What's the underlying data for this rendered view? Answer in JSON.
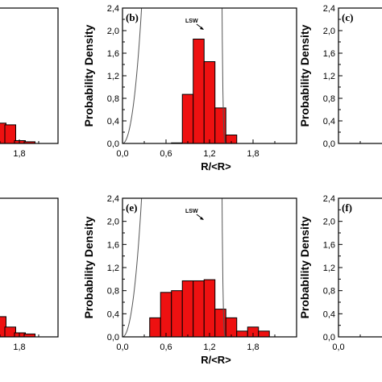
{
  "chart_data": [
    {
      "type": "bar",
      "panel_label": "",
      "xlabel": "",
      "ylabel": "",
      "xlim": [
        0,
        2.4
      ],
      "ylim": [
        0,
        2.4
      ],
      "xticks": [
        "1,8"
      ],
      "yticks": [],
      "bar_width": 0.15,
      "bars": [
        {
          "x": 1.5,
          "y": 0.36
        },
        {
          "x": 1.65,
          "y": 0.33
        },
        {
          "x": 1.8,
          "y": 0.05
        },
        {
          "x": 1.95,
          "y": 0.03
        }
      ],
      "curve": false,
      "curve_label": ""
    },
    {
      "type": "bar",
      "panel_label": "(b)",
      "xlabel": "R/<R>",
      "ylabel": "Probability Density",
      "xlim": [
        0,
        2.4
      ],
      "ylim": [
        0,
        2.4
      ],
      "xticks": [
        "0,0",
        "0,6",
        "1,2",
        "1,8"
      ],
      "yticks": [
        "0,0",
        "0,4",
        "0,8",
        "1,2",
        "1,6",
        "2,0",
        "2,4"
      ],
      "bar_width": 0.15,
      "bars": [
        {
          "x": 0.75,
          "y": 0.01
        },
        {
          "x": 0.9,
          "y": 0.87
        },
        {
          "x": 1.05,
          "y": 1.85
        },
        {
          "x": 1.2,
          "y": 1.45
        },
        {
          "x": 1.35,
          "y": 0.63
        },
        {
          "x": 1.5,
          "y": 0.15
        }
      ],
      "curve": true,
      "curve_label": "LSW"
    },
    {
      "type": "bar",
      "panel_label": "(c)",
      "xlabel": "",
      "ylabel": "Probability Density",
      "xlim": [
        0,
        2.4
      ],
      "ylim": [
        0,
        2.4
      ],
      "xticks": [],
      "yticks": [
        "0,0",
        "0,4",
        "0,8",
        "1,2",
        "1,6",
        "2,0",
        "2,4"
      ],
      "bar_width": 0.15,
      "bars": [],
      "curve": false,
      "curve_label": ""
    },
    {
      "type": "bar",
      "panel_label": "",
      "xlabel": "",
      "ylabel": "",
      "xlim": [
        0,
        2.4
      ],
      "ylim": [
        0,
        2.4
      ],
      "xticks": [
        "1,8"
      ],
      "yticks": [],
      "bar_width": 0.15,
      "bars": [
        {
          "x": 1.5,
          "y": 0.35
        },
        {
          "x": 1.65,
          "y": 0.17
        },
        {
          "x": 1.8,
          "y": 0.07
        },
        {
          "x": 1.95,
          "y": 0.05
        }
      ],
      "curve": false,
      "curve_label": ""
    },
    {
      "type": "bar",
      "panel_label": "(e)",
      "xlabel": "R/<R>",
      "ylabel": "Probability Density",
      "xlim": [
        0,
        2.4
      ],
      "ylim": [
        0,
        2.4
      ],
      "xticks": [
        "0,0",
        "0,6",
        "1,2",
        "1,8"
      ],
      "yticks": [
        "0,0",
        "0,4",
        "0,8",
        "1,2",
        "1,6",
        "2,0",
        "2,4"
      ],
      "bar_width": 0.15,
      "bars": [
        {
          "x": 0.45,
          "y": 0.33
        },
        {
          "x": 0.6,
          "y": 0.77
        },
        {
          "x": 0.75,
          "y": 0.8
        },
        {
          "x": 0.9,
          "y": 0.97
        },
        {
          "x": 1.05,
          "y": 0.97
        },
        {
          "x": 1.2,
          "y": 0.99
        },
        {
          "x": 1.35,
          "y": 0.48
        },
        {
          "x": 1.5,
          "y": 0.33
        },
        {
          "x": 1.65,
          "y": 0.1
        },
        {
          "x": 1.8,
          "y": 0.17
        },
        {
          "x": 1.95,
          "y": 0.1
        }
      ],
      "curve": true,
      "curve_label": "LSW"
    },
    {
      "type": "bar",
      "panel_label": "(f)",
      "xlabel": "",
      "ylabel": "Probability Density",
      "xlim": [
        0,
        2.4
      ],
      "ylim": [
        0,
        2.4
      ],
      "xticks": [
        "0,0"
      ],
      "yticks": [
        "0,0",
        "0,4",
        "0,8",
        "1,2",
        "1,6",
        "2,0",
        "2,4"
      ],
      "bar_width": 0.15,
      "bars": [],
      "curve": false,
      "curve_label": ""
    }
  ],
  "colors": {
    "bar_fill": "#ee1111",
    "bar_stroke": "#000000",
    "curve": "#555555",
    "axis": "#000000"
  }
}
